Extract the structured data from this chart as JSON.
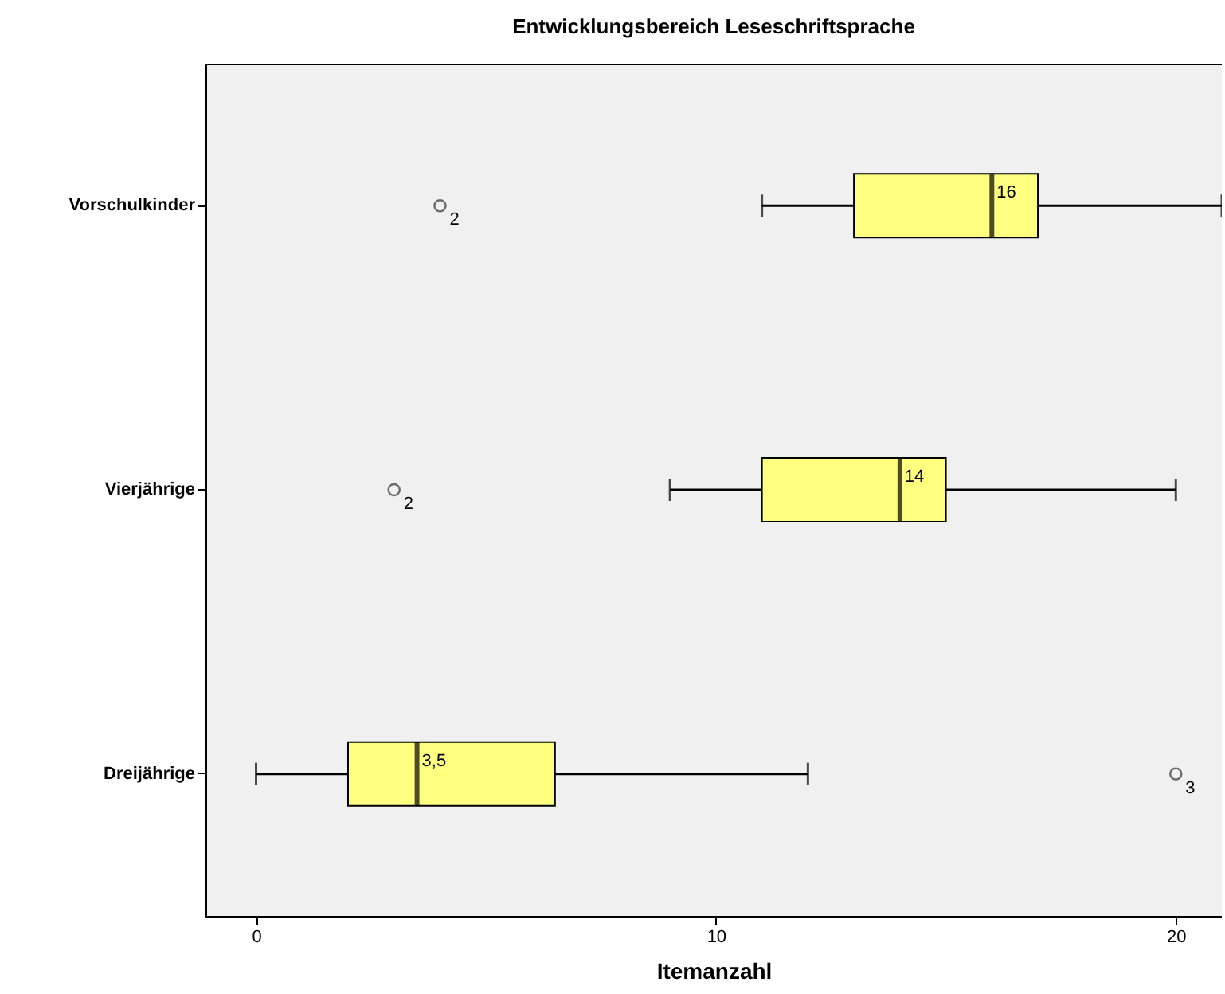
{
  "chart_data": {
    "type": "box",
    "title": "Entwicklungsbereich Leseschriftsprache",
    "xlabel": "Itemanzahl",
    "orientation": "horizontal",
    "categories": [
      "Vorschulkinder",
      "Vierjährige",
      "Dreijährige"
    ],
    "series": [
      {
        "color": "#ffff80",
        "boxes": [
          {
            "low": 11,
            "q1": 13,
            "median": 16,
            "q3": 17,
            "high": 21,
            "outliers": [
              4
            ]
          },
          {
            "low": 9,
            "q1": 11,
            "median": 14,
            "q3": 15,
            "high": 20,
            "outliers": [
              3
            ]
          },
          {
            "low": 0,
            "q1": 2,
            "median": 3.5,
            "q3": 6.5,
            "high": 12,
            "outliers": [
              20
            ]
          }
        ]
      }
    ],
    "xlim": [
      -1.1,
      21
    ],
    "xticks": [
      0,
      10,
      20
    ],
    "grid": false,
    "annotations": [
      {
        "text": "16",
        "x": 16,
        "y": "Vorschulkinder"
      },
      {
        "text": "14",
        "x": 14,
        "y": "Vierjährige"
      },
      {
        "text": "3,5",
        "x": 3.5,
        "y": "Dreijährige"
      },
      "2",
      "2",
      "3"
    ]
  }
}
